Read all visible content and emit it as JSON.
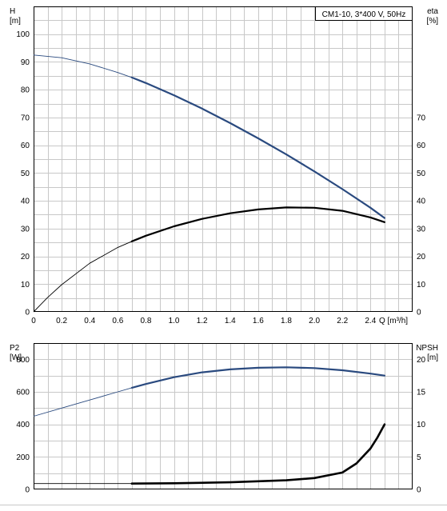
{
  "chart_data": [
    {
      "type": "line",
      "title": "CM1-10, 3*400 V, 50Hz",
      "xlabel": "Q [m³/h]",
      "x_ticks": [
        "0",
        "0.2",
        "0.4",
        "0.6",
        "0.8",
        "1.0",
        "1.2",
        "1.4",
        "1.6",
        "1.8",
        "2.0",
        "2.2",
        "2.4"
      ],
      "xlim": [
        0,
        2.7
      ],
      "left_axis": {
        "label": [
          "H",
          "[m]"
        ],
        "ylim": [
          0,
          110
        ],
        "ticks": [
          "0",
          "10",
          "20",
          "30",
          "40",
          "50",
          "60",
          "70",
          "80",
          "90",
          "100"
        ]
      },
      "right_axis": {
        "label": [
          "eta",
          "[%]"
        ],
        "ylim": [
          0,
          110
        ],
        "ticks": [
          "0",
          "10",
          "20",
          "30",
          "40",
          "50",
          "60",
          "70"
        ]
      },
      "grid": true,
      "series": [
        {
          "axis": "left",
          "color": "#2a4a7f",
          "x": [
            0,
            0.2,
            0.4,
            0.6,
            0.7,
            0.8,
            1.0,
            1.2,
            1.4,
            1.6,
            1.8,
            2.0,
            2.2,
            2.4,
            2.5
          ],
          "y": [
            92.5,
            91.5,
            89.3,
            86.2,
            84.4,
            82.4,
            78.0,
            73.2,
            68.0,
            62.5,
            56.7,
            50.6,
            44.2,
            37.5,
            33.8
          ]
        },
        {
          "axis": "right",
          "color": "#000000",
          "x": [
            0,
            0.1,
            0.2,
            0.4,
            0.6,
            0.7,
            0.8,
            1.0,
            1.2,
            1.4,
            1.6,
            1.8,
            2.0,
            2.2,
            2.4,
            2.5
          ],
          "y": [
            0,
            5.2,
            9.8,
            17.5,
            23.2,
            25.4,
            27.4,
            30.8,
            33.5,
            35.5,
            36.9,
            37.6,
            37.5,
            36.4,
            34.0,
            32.3
          ]
        }
      ]
    },
    {
      "type": "line",
      "xlim": [
        0,
        2.7
      ],
      "left_axis": {
        "label": [
          "P2",
          "[W]"
        ],
        "ylim": [
          0,
          900
        ],
        "ticks": [
          "0",
          "200",
          "400",
          "600",
          "800"
        ]
      },
      "right_axis": {
        "label": [
          "NPSH",
          "[m]"
        ],
        "ylim": [
          0,
          22.5
        ],
        "ticks": [
          "0",
          "5",
          "10",
          "15",
          "20"
        ]
      },
      "grid": true,
      "series": [
        {
          "axis": "left",
          "color": "#2a4a7f",
          "x": [
            0,
            0.2,
            0.4,
            0.6,
            0.7,
            0.8,
            1.0,
            1.2,
            1.4,
            1.6,
            1.8,
            2.0,
            2.2,
            2.4,
            2.5
          ],
          "y": [
            450,
            500,
            550,
            600,
            625,
            648,
            690,
            720,
            738,
            748,
            751,
            746,
            733,
            712,
            700
          ]
        },
        {
          "axis": "right",
          "color": "#000000",
          "x": [
            0,
            0.7,
            1.0,
            1.4,
            1.8,
            2.0,
            2.2,
            2.3,
            2.4,
            2.45,
            2.5
          ],
          "y": [
            0.9,
            0.9,
            0.95,
            1.1,
            1.4,
            1.75,
            2.6,
            4.0,
            6.3,
            8.0,
            10.0
          ]
        }
      ]
    }
  ]
}
